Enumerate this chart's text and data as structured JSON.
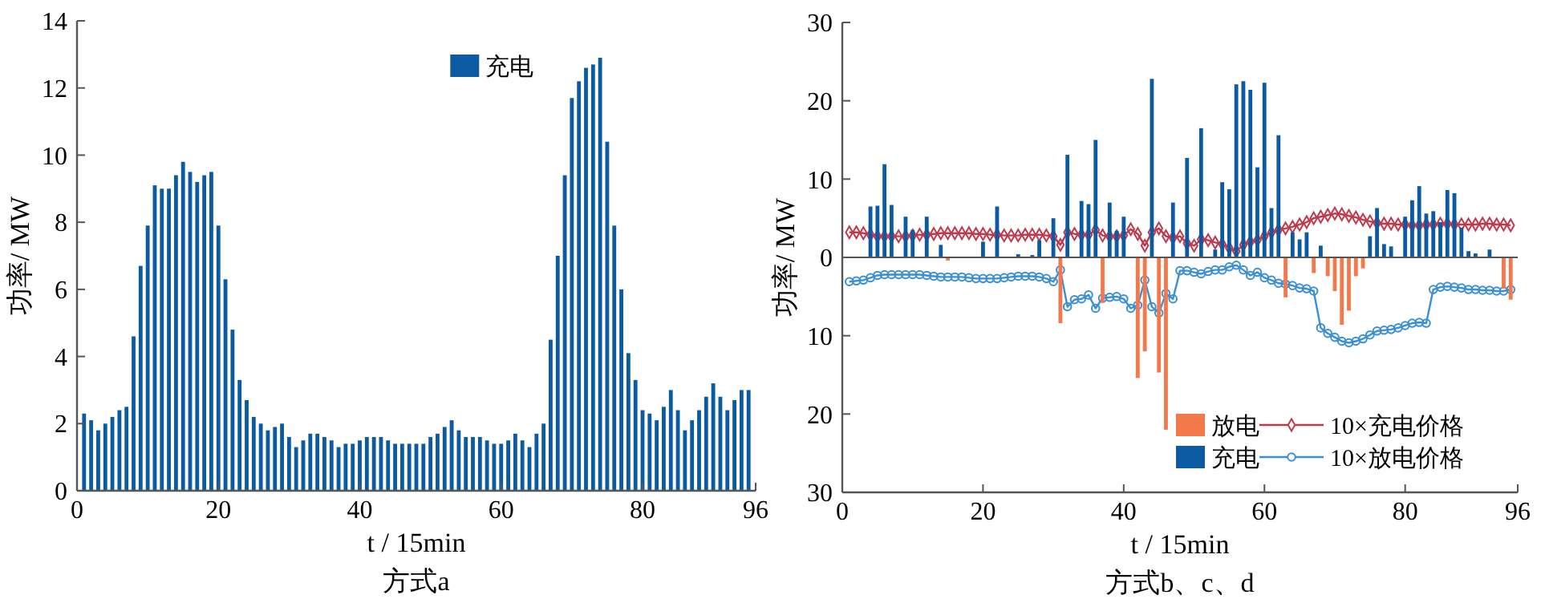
{
  "chart_data": [
    {
      "type": "bar",
      "title": "方式a",
      "xlabel": "t / 15min",
      "ylabel": "功率/ MW",
      "xlim": [
        0,
        96
      ],
      "xticks": [
        0,
        20,
        40,
        60,
        80,
        96
      ],
      "ylim": [
        0,
        14
      ],
      "yticks": [
        0,
        2,
        4,
        6,
        8,
        10,
        12,
        14
      ],
      "legend": "top",
      "grid": false,
      "series": [
        {
          "name": "充电",
          "color": "#0b5aa2",
          "x": [
            1,
            2,
            3,
            4,
            5,
            6,
            7,
            8,
            9,
            10,
            11,
            12,
            13,
            14,
            15,
            16,
            17,
            18,
            19,
            20,
            21,
            22,
            23,
            24,
            25,
            26,
            27,
            28,
            29,
            30,
            31,
            32,
            33,
            34,
            35,
            36,
            37,
            38,
            39,
            40,
            41,
            42,
            43,
            44,
            45,
            46,
            47,
            48,
            49,
            50,
            51,
            52,
            53,
            54,
            55,
            56,
            57,
            58,
            59,
            60,
            61,
            62,
            63,
            64,
            65,
            66,
            67,
            68,
            69,
            70,
            71,
            72,
            73,
            74,
            75,
            76,
            77,
            78,
            79,
            80,
            81,
            82,
            83,
            84,
            85,
            86,
            87,
            88,
            89,
            90,
            91,
            92,
            93,
            94,
            95
          ],
          "values": [
            2.3,
            2.1,
            1.8,
            2.0,
            2.2,
            2.4,
            2.5,
            4.6,
            6.7,
            7.9,
            9.1,
            9.0,
            9.0,
            9.4,
            9.8,
            9.5,
            9.2,
            9.4,
            9.5,
            7.9,
            6.3,
            4.8,
            3.3,
            2.7,
            2.2,
            2.0,
            1.8,
            1.9,
            2.0,
            1.6,
            1.3,
            1.5,
            1.7,
            1.7,
            1.6,
            1.5,
            1.3,
            1.4,
            1.4,
            1.5,
            1.6,
            1.6,
            1.6,
            1.5,
            1.4,
            1.4,
            1.4,
            1.4,
            1.4,
            1.6,
            1.7,
            1.9,
            2.1,
            1.8,
            1.6,
            1.6,
            1.6,
            1.5,
            1.4,
            1.4,
            1.5,
            1.7,
            1.5,
            1.3,
            1.7,
            2.0,
            4.5,
            7.0,
            9.4,
            11.7,
            12.2,
            12.6,
            12.7,
            12.9,
            10.4,
            7.9,
            6.0,
            4.1,
            3.3,
            2.4,
            2.3,
            2.1,
            2.5,
            3.0,
            2.4,
            1.8,
            2.1,
            2.4,
            2.8,
            3.2,
            2.8,
            2.4,
            2.7,
            3.0,
            3.0
          ]
        }
      ]
    },
    {
      "type": "bar",
      "title": "方式b、c、d",
      "xlabel": "t / 15min",
      "ylabel": "功率/ MW",
      "xlim": [
        0,
        96
      ],
      "xticks": [
        0,
        20,
        40,
        60,
        80,
        96
      ],
      "ylim": [
        -30,
        30
      ],
      "yticks": [
        30,
        20,
        10,
        0,
        {
          "value": -10,
          "label": "10"
        },
        {
          "value": -20,
          "label": "20"
        },
        {
          "value": -30,
          "label": "30"
        }
      ],
      "legend": "bottom right",
      "grid": false,
      "ref_lines": [
        {
          "axis": "y",
          "value": 0
        }
      ],
      "series": [
        {
          "name": "放电",
          "type": "bar",
          "color": "#f4794a",
          "x": [
            15,
            31,
            37,
            42,
            43,
            45,
            46,
            63,
            67,
            69,
            70,
            71,
            72,
            73,
            74,
            94,
            95
          ],
          "values": [
            -0.4,
            -8.4,
            -5.8,
            -15.4,
            -12.0,
            -14.7,
            -22.0,
            -5.1,
            -2.0,
            -2.4,
            -4.3,
            -8.6,
            -6.8,
            -2.4,
            -1.4,
            -4.0,
            -5.4
          ]
        },
        {
          "name": "充电",
          "type": "bar",
          "color": "#0b5aa2",
          "x": [
            4,
            5,
            6,
            7,
            9,
            10,
            12,
            14,
            20,
            22,
            25,
            27,
            28,
            30,
            32,
            34,
            35,
            36,
            38,
            39,
            40,
            44,
            47,
            49,
            51,
            53,
            54,
            55,
            56,
            57,
            58,
            59,
            60,
            61,
            62,
            64,
            65,
            66,
            68,
            75,
            76,
            77,
            78,
            80,
            81,
            82,
            83,
            84,
            85,
            86,
            87,
            88,
            89,
            90,
            92
          ],
          "values": [
            6.5,
            6.6,
            11.9,
            6.7,
            5.2,
            3.5,
            5.2,
            1.6,
            2.0,
            6.5,
            0.4,
            0.3,
            2.2,
            5.0,
            13.1,
            7.2,
            6.8,
            15.0,
            7.0,
            3.4,
            5.2,
            22.8,
            7.0,
            12.7,
            16.5,
            1.0,
            9.6,
            8.7,
            22.1,
            22.5,
            21.4,
            11.5,
            22.3,
            6.3,
            15.6,
            3.2,
            2.3,
            3.2,
            1.5,
            2.7,
            6.3,
            1.7,
            1.4,
            5.2,
            7.3,
            9.1,
            5.6,
            5.9,
            4.5,
            8.6,
            8.2,
            3.8,
            0.8,
            0.5,
            1.0
          ]
        },
        {
          "name": "10×充电价格",
          "type": "line",
          "color": "#c0394b",
          "marker": "diamond",
          "x": [
            1,
            2,
            3,
            4,
            5,
            6,
            7,
            8,
            9,
            10,
            11,
            12,
            13,
            14,
            15,
            16,
            17,
            18,
            19,
            20,
            21,
            22,
            23,
            24,
            25,
            26,
            27,
            28,
            29,
            30,
            31,
            32,
            33,
            34,
            35,
            36,
            37,
            38,
            39,
            40,
            41,
            42,
            43,
            44,
            45,
            46,
            47,
            48,
            49,
            50,
            51,
            52,
            53,
            54,
            55,
            56,
            57,
            58,
            59,
            60,
            61,
            62,
            63,
            64,
            65,
            66,
            67,
            68,
            69,
            70,
            71,
            72,
            73,
            74,
            75,
            76,
            77,
            78,
            79,
            80,
            81,
            82,
            83,
            84,
            85,
            86,
            87,
            88,
            89,
            90,
            91,
            92,
            93,
            94,
            95
          ],
          "values": [
            3.2,
            3.2,
            3.1,
            2.9,
            2.7,
            2.7,
            2.7,
            2.7,
            2.7,
            2.8,
            2.9,
            2.9,
            3.0,
            3.1,
            3.1,
            3.1,
            3.1,
            3.1,
            3.0,
            3.0,
            2.9,
            2.9,
            2.8,
            2.8,
            2.8,
            2.9,
            2.9,
            2.9,
            2.8,
            2.7,
            1.6,
            3.2,
            3.0,
            2.9,
            2.9,
            3.5,
            2.8,
            2.7,
            2.7,
            2.8,
            3.6,
            3.0,
            1.5,
            3.2,
            3.7,
            2.7,
            2.5,
            2.7,
            1.8,
            1.5,
            2.3,
            2.2,
            1.9,
            1.7,
            1.2,
            0.8,
            1.6,
            2.0,
            2.2,
            2.7,
            3.2,
            3.5,
            3.7,
            3.9,
            4.2,
            4.5,
            5.0,
            5.2,
            5.4,
            5.6,
            5.5,
            5.3,
            5.1,
            4.8,
            4.6,
            4.4,
            4.3,
            4.3,
            4.2,
            4.2,
            4.1,
            4.1,
            4.2,
            4.2,
            4.3,
            4.3,
            4.2,
            4.2,
            4.2,
            4.2,
            4.3,
            4.3,
            4.2,
            4.2,
            4.1
          ]
        },
        {
          "name": "10×放电价格",
          "type": "line",
          "color": "#3a8fd6",
          "marker": "circle",
          "x": [
            1,
            2,
            3,
            4,
            5,
            6,
            7,
            8,
            9,
            10,
            11,
            12,
            13,
            14,
            15,
            16,
            17,
            18,
            19,
            20,
            21,
            22,
            23,
            24,
            25,
            26,
            27,
            28,
            29,
            30,
            31,
            32,
            33,
            34,
            35,
            36,
            37,
            38,
            39,
            40,
            41,
            42,
            43,
            44,
            45,
            46,
            47,
            48,
            49,
            50,
            51,
            52,
            53,
            54,
            55,
            56,
            57,
            58,
            59,
            60,
            61,
            62,
            63,
            64,
            65,
            66,
            67,
            68,
            69,
            70,
            71,
            72,
            73,
            74,
            75,
            76,
            77,
            78,
            79,
            80,
            81,
            82,
            83,
            84,
            85,
            86,
            87,
            88,
            89,
            90,
            91,
            92,
            93,
            94,
            95
          ],
          "values": [
            -3.1,
            -3.0,
            -2.9,
            -2.6,
            -2.3,
            -2.2,
            -2.2,
            -2.2,
            -2.2,
            -2.2,
            -2.2,
            -2.3,
            -2.4,
            -2.5,
            -2.5,
            -2.5,
            -2.5,
            -2.6,
            -2.7,
            -2.7,
            -2.7,
            -2.7,
            -2.6,
            -2.5,
            -2.4,
            -2.4,
            -2.4,
            -2.5,
            -2.7,
            -3.1,
            -1.6,
            -6.3,
            -5.4,
            -5.3,
            -4.8,
            -6.5,
            -5.2,
            -5.1,
            -5.0,
            -5.3,
            -6.5,
            -6.1,
            -2.9,
            -6.3,
            -7.1,
            -4.6,
            -5.3,
            -1.7,
            -1.7,
            -1.9,
            -2.1,
            -1.8,
            -1.6,
            -1.6,
            -1.2,
            -1.0,
            -1.6,
            -2.3,
            -1.9,
            -2.6,
            -2.9,
            -3.3,
            -3.4,
            -3.6,
            -3.9,
            -4.0,
            -4.3,
            -9.0,
            -9.7,
            -10.2,
            -10.7,
            -10.9,
            -10.7,
            -10.4,
            -9.9,
            -9.4,
            -9.3,
            -9.2,
            -9.0,
            -8.7,
            -8.4,
            -8.3,
            -8.4,
            -4.1,
            -3.8,
            -3.7,
            -3.8,
            -3.9,
            -4.1,
            -4.1,
            -4.2,
            -4.2,
            -4.3,
            -4.3,
            -4.1
          ]
        }
      ]
    }
  ]
}
